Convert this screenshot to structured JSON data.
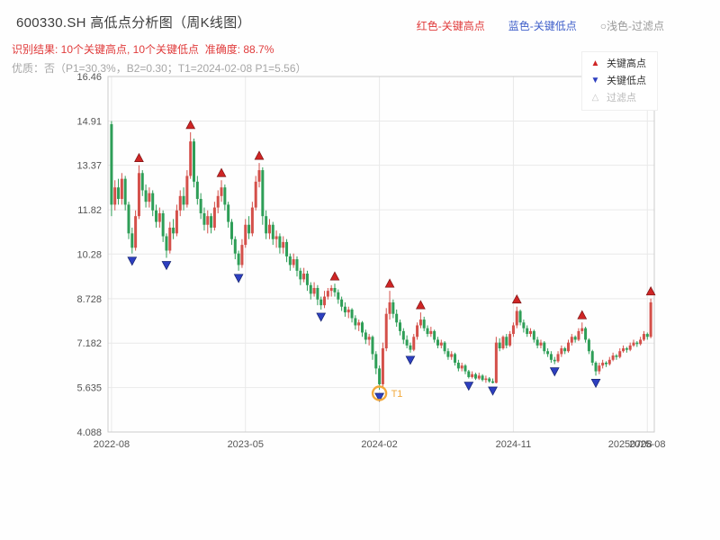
{
  "header": {
    "title": "600330.SH 高低点分析图（周K线图）",
    "legend_high": "红色-关键高点",
    "legend_low": "蓝色-关键低点",
    "legend_filter": "○浅色-过滤点",
    "result_line": "识别结果: 10个关键高点, 10个关键低点  准确度: 88.7%",
    "quality_line": "优质：否（P1=30.3%，B2=0.30；T1=2024-02-08 P1=5.56）"
  },
  "plot_legend": {
    "high": "关键高点",
    "low": "关键低点",
    "filter": "过滤点"
  },
  "chart_data": {
    "type": "candlestick",
    "title": "600330.SH 高低点分析图（周K线图）",
    "symbol": "600330.SH",
    "period": "weekly",
    "xlabel": "",
    "ylabel": "",
    "grid": true,
    "legend_position": "upper right",
    "num_key_highs": 10,
    "num_key_lows": 10,
    "accuracy": "88.7%",
    "ylim": [
      4.088,
      16.46
    ],
    "y_ticks": [
      "16.46",
      "14.91",
      "13.37",
      "11.82",
      "10.28",
      "8.728",
      "7.182",
      "5.635",
      "4.088"
    ],
    "x_ticks": [
      {
        "week": 0,
        "label": "2022-08"
      },
      {
        "week": 39,
        "label": "2023-05"
      },
      {
        "week": 78,
        "label": "2024-02"
      },
      {
        "week": 117,
        "label": "2024-11"
      },
      {
        "week": 156,
        "label": "2025-08"
      }
    ],
    "extra_x_label": {
      "week": 151,
      "label": "20250708"
    },
    "up_color": "#d4504a",
    "down_color": "#2e9e57",
    "key_high_color": "#cf2525",
    "key_high_edge": "#7d1414",
    "key_low_color": "#2d3fc0",
    "key_low_edge": "#16246e",
    "t1_color": "#f2a93b",
    "grid_color": "#e9e9e9",
    "spine_color": "#cccccc",
    "tick_color": "#555555",
    "key_highs": [
      {
        "week": 8,
        "value": 13.37
      },
      {
        "week": 23,
        "value": 14.52
      },
      {
        "week": 32,
        "value": 12.85
      },
      {
        "week": 43,
        "value": 13.45
      },
      {
        "week": 65,
        "value": 9.25
      },
      {
        "week": 81,
        "value": 9.0
      },
      {
        "week": 90,
        "value": 8.25
      },
      {
        "week": 118,
        "value": 8.45
      },
      {
        "week": 137,
        "value": 7.9
      },
      {
        "week": 157,
        "value": 8.73
      }
    ],
    "key_lows": [
      {
        "week": 6,
        "value": 10.3
      },
      {
        "week": 16,
        "value": 10.15
      },
      {
        "week": 37,
        "value": 9.7
      },
      {
        "week": 61,
        "value": 8.35
      },
      {
        "week": 78,
        "value": 5.56
      },
      {
        "week": 87,
        "value": 6.85
      },
      {
        "week": 104,
        "value": 5.95
      },
      {
        "week": 111,
        "value": 5.78
      },
      {
        "week": 129,
        "value": 6.45
      },
      {
        "week": 141,
        "value": 6.05
      }
    ],
    "t1_marker": {
      "week": 78,
      "value": 5.56,
      "label": "T1",
      "date": "2024-02-08"
    },
    "candles": [
      [
        14.8,
        14.91,
        11.6,
        12.0
      ],
      [
        12.0,
        12.85,
        11.8,
        12.6
      ],
      [
        12.6,
        12.9,
        12.0,
        12.2
      ],
      [
        12.2,
        13.1,
        12.0,
        12.9
      ],
      [
        12.9,
        13.0,
        11.8,
        12.0
      ],
      [
        12.0,
        12.1,
        10.8,
        11.0
      ],
      [
        11.0,
        11.2,
        10.3,
        10.5
      ],
      [
        10.5,
        11.8,
        10.4,
        11.6
      ],
      [
        11.6,
        13.37,
        11.5,
        13.1
      ],
      [
        13.1,
        13.2,
        12.3,
        12.5
      ],
      [
        12.5,
        12.7,
        11.9,
        12.1
      ],
      [
        12.1,
        12.6,
        11.9,
        12.4
      ],
      [
        12.4,
        12.5,
        11.6,
        11.8
      ],
      [
        11.8,
        12.0,
        11.2,
        11.4
      ],
      [
        11.4,
        11.9,
        11.2,
        11.7
      ],
      [
        11.7,
        11.8,
        10.7,
        10.9
      ],
      [
        10.9,
        11.0,
        10.15,
        10.4
      ],
      [
        10.4,
        11.4,
        10.3,
        11.2
      ],
      [
        11.2,
        11.5,
        10.8,
        11.0
      ],
      [
        11.0,
        12.0,
        10.9,
        11.8
      ],
      [
        11.8,
        12.5,
        11.6,
        12.3
      ],
      [
        12.3,
        12.6,
        11.8,
        12.0
      ],
      [
        12.0,
        13.2,
        11.9,
        13.0
      ],
      [
        13.0,
        14.52,
        12.9,
        14.2
      ],
      [
        14.2,
        14.3,
        12.6,
        12.8
      ],
      [
        12.8,
        13.0,
        12.0,
        12.2
      ],
      [
        12.2,
        12.4,
        11.5,
        11.7
      ],
      [
        11.7,
        11.9,
        11.1,
        11.3
      ],
      [
        11.3,
        11.8,
        11.0,
        11.6
      ],
      [
        11.6,
        11.7,
        11.0,
        11.2
      ],
      [
        11.2,
        12.1,
        11.1,
        11.9
      ],
      [
        11.9,
        12.5,
        11.7,
        12.3
      ],
      [
        12.3,
        12.85,
        12.1,
        12.6
      ],
      [
        12.6,
        12.7,
        11.8,
        12.0
      ],
      [
        12.0,
        12.1,
        11.2,
        11.4
      ],
      [
        11.4,
        11.5,
        10.6,
        10.8
      ],
      [
        10.8,
        10.9,
        10.1,
        10.3
      ],
      [
        10.3,
        10.4,
        9.7,
        9.9
      ],
      [
        9.9,
        10.8,
        9.8,
        10.6
      ],
      [
        10.6,
        11.5,
        10.5,
        11.3
      ],
      [
        11.3,
        11.6,
        10.8,
        11.0
      ],
      [
        11.0,
        12.1,
        10.9,
        11.9
      ],
      [
        11.9,
        13.0,
        11.8,
        12.8
      ],
      [
        12.8,
        13.45,
        12.6,
        13.2
      ],
      [
        13.2,
        13.3,
        11.3,
        11.6
      ],
      [
        11.6,
        11.8,
        10.8,
        11.0
      ],
      [
        11.0,
        11.5,
        10.8,
        11.3
      ],
      [
        11.3,
        11.4,
        10.6,
        10.8
      ],
      [
        10.8,
        11.1,
        10.5,
        10.9
      ],
      [
        10.9,
        11.0,
        10.3,
        10.5
      ],
      [
        10.5,
        10.9,
        10.3,
        10.7
      ],
      [
        10.7,
        10.8,
        10.0,
        10.2
      ],
      [
        10.2,
        10.3,
        9.7,
        9.9
      ],
      [
        9.9,
        10.3,
        9.8,
        10.1
      ],
      [
        10.1,
        10.2,
        9.5,
        9.7
      ],
      [
        9.7,
        9.8,
        9.2,
        9.4
      ],
      [
        9.4,
        9.8,
        9.3,
        9.6
      ],
      [
        9.6,
        9.7,
        9.0,
        9.2
      ],
      [
        9.2,
        9.3,
        8.7,
        8.9
      ],
      [
        8.9,
        9.3,
        8.8,
        9.1
      ],
      [
        9.1,
        9.2,
        8.5,
        8.7
      ],
      [
        8.7,
        8.8,
        8.35,
        8.5
      ],
      [
        8.5,
        9.0,
        8.4,
        8.8
      ],
      [
        8.8,
        9.1,
        8.7,
        9.0
      ],
      [
        9.0,
        9.2,
        8.8,
        9.1
      ],
      [
        9.1,
        9.25,
        8.8,
        8.95
      ],
      [
        8.95,
        9.05,
        8.55,
        8.7
      ],
      [
        8.7,
        8.8,
        8.3,
        8.45
      ],
      [
        8.45,
        8.6,
        8.1,
        8.25
      ],
      [
        8.25,
        8.45,
        8.05,
        8.35
      ],
      [
        8.35,
        8.4,
        7.9,
        8.05
      ],
      [
        8.05,
        8.15,
        7.65,
        7.8
      ],
      [
        7.8,
        8.0,
        7.6,
        7.9
      ],
      [
        7.9,
        7.95,
        7.4,
        7.55
      ],
      [
        7.55,
        7.65,
        7.15,
        7.3
      ],
      [
        7.3,
        7.5,
        7.1,
        7.4
      ],
      [
        7.4,
        7.45,
        6.6,
        6.8
      ],
      [
        6.8,
        6.9,
        6.1,
        6.3
      ],
      [
        6.3,
        6.4,
        5.56,
        5.75
      ],
      [
        5.75,
        7.2,
        5.6,
        7.0
      ],
      [
        7.0,
        8.4,
        6.9,
        8.2
      ],
      [
        8.2,
        9.0,
        8.0,
        8.6
      ],
      [
        8.6,
        8.7,
        8.05,
        8.2
      ],
      [
        8.2,
        8.35,
        7.75,
        7.9
      ],
      [
        7.9,
        8.0,
        7.45,
        7.6
      ],
      [
        7.6,
        7.7,
        7.15,
        7.3
      ],
      [
        7.3,
        7.45,
        7.0,
        7.1
      ],
      [
        7.1,
        7.2,
        6.85,
        6.95
      ],
      [
        6.95,
        7.5,
        6.9,
        7.4
      ],
      [
        7.4,
        7.9,
        7.3,
        7.8
      ],
      [
        7.8,
        8.25,
        7.7,
        8.0
      ],
      [
        8.0,
        8.1,
        7.6,
        7.7
      ],
      [
        7.7,
        7.8,
        7.4,
        7.5
      ],
      [
        7.5,
        7.75,
        7.4,
        7.6
      ],
      [
        7.6,
        7.65,
        7.2,
        7.3
      ],
      [
        7.3,
        7.4,
        7.0,
        7.1
      ],
      [
        7.1,
        7.3,
        7.0,
        7.2
      ],
      [
        7.2,
        7.25,
        6.8,
        6.9
      ],
      [
        6.9,
        7.0,
        6.6,
        6.7
      ],
      [
        6.7,
        6.9,
        6.6,
        6.8
      ],
      [
        6.8,
        6.85,
        6.4,
        6.5
      ],
      [
        6.5,
        6.6,
        6.2,
        6.3
      ],
      [
        6.3,
        6.5,
        6.2,
        6.4
      ],
      [
        6.4,
        6.45,
        6.1,
        6.2
      ],
      [
        6.2,
        6.25,
        5.95,
        6.0
      ],
      [
        6.0,
        6.2,
        5.95,
        6.1
      ],
      [
        6.1,
        6.15,
        5.9,
        5.95
      ],
      [
        5.95,
        6.15,
        5.9,
        6.05
      ],
      [
        6.05,
        6.1,
        5.85,
        5.9
      ],
      [
        5.9,
        6.05,
        5.8,
        5.95
      ],
      [
        5.95,
        6.0,
        5.8,
        5.85
      ],
      [
        5.85,
        5.95,
        5.78,
        5.8
      ],
      [
        5.8,
        7.4,
        5.78,
        7.2
      ],
      [
        7.2,
        7.35,
        6.9,
        7.0
      ],
      [
        7.0,
        7.45,
        6.95,
        7.4
      ],
      [
        7.4,
        7.5,
        7.0,
        7.1
      ],
      [
        7.1,
        7.6,
        7.05,
        7.5
      ],
      [
        7.5,
        7.9,
        7.4,
        7.8
      ],
      [
        7.8,
        8.45,
        7.7,
        8.3
      ],
      [
        8.3,
        8.35,
        7.8,
        7.9
      ],
      [
        7.9,
        8.0,
        7.55,
        7.7
      ],
      [
        7.7,
        7.8,
        7.4,
        7.5
      ],
      [
        7.5,
        7.7,
        7.4,
        7.6
      ],
      [
        7.6,
        7.65,
        7.2,
        7.3
      ],
      [
        7.3,
        7.4,
        7.0,
        7.1
      ],
      [
        7.1,
        7.3,
        7.0,
        7.2
      ],
      [
        7.2,
        7.25,
        6.8,
        6.9
      ],
      [
        6.9,
        7.0,
        6.7,
        6.8
      ],
      [
        6.8,
        6.9,
        6.5,
        6.6
      ],
      [
        6.6,
        6.7,
        6.45,
        6.55
      ],
      [
        6.55,
        6.9,
        6.5,
        6.8
      ],
      [
        6.8,
        7.1,
        6.7,
        7.0
      ],
      [
        7.0,
        7.05,
        6.8,
        6.9
      ],
      [
        6.9,
        7.3,
        6.85,
        7.2
      ],
      [
        7.2,
        7.5,
        7.1,
        7.4
      ],
      [
        7.4,
        7.45,
        7.2,
        7.3
      ],
      [
        7.3,
        7.7,
        7.25,
        7.6
      ],
      [
        7.6,
        7.9,
        7.5,
        7.7
      ],
      [
        7.7,
        7.75,
        7.2,
        7.3
      ],
      [
        7.3,
        7.35,
        6.8,
        6.9
      ],
      [
        6.9,
        6.95,
        6.4,
        6.5
      ],
      [
        6.5,
        6.55,
        6.05,
        6.2
      ],
      [
        6.2,
        6.5,
        6.1,
        6.4
      ],
      [
        6.4,
        6.6,
        6.3,
        6.5
      ],
      [
        6.5,
        6.55,
        6.35,
        6.45
      ],
      [
        6.45,
        6.7,
        6.4,
        6.6
      ],
      [
        6.6,
        6.85,
        6.55,
        6.75
      ],
      [
        6.75,
        6.8,
        6.6,
        6.7
      ],
      [
        6.7,
        7.0,
        6.65,
        6.9
      ],
      [
        6.9,
        7.1,
        6.85,
        7.0
      ],
      [
        7.0,
        7.05,
        6.85,
        6.95
      ],
      [
        6.95,
        7.2,
        6.9,
        7.1
      ],
      [
        7.1,
        7.3,
        7.05,
        7.2
      ],
      [
        7.2,
        7.25,
        7.05,
        7.15
      ],
      [
        7.15,
        7.4,
        7.1,
        7.3
      ],
      [
        7.3,
        7.6,
        7.25,
        7.5
      ],
      [
        7.5,
        7.55,
        7.3,
        7.4
      ],
      [
        7.4,
        8.73,
        7.35,
        8.6
      ]
    ]
  }
}
